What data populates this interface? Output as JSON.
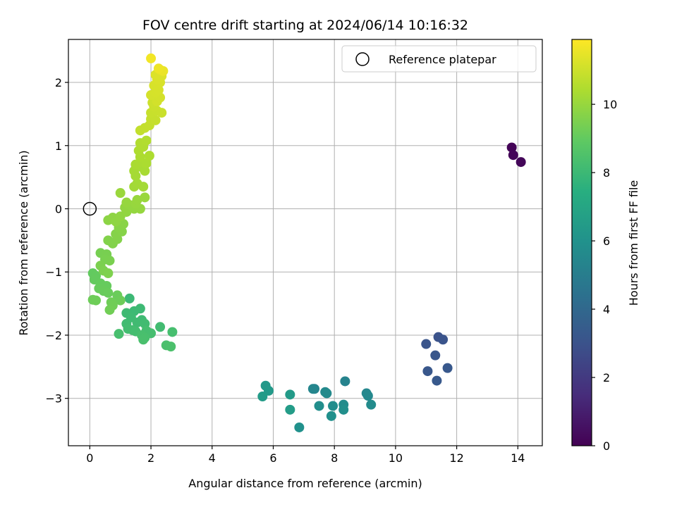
{
  "chart_data": {
    "type": "scatter",
    "title": "FOV centre drift starting at 2024/06/14 10:16:32",
    "xlabel": "Angular distance from reference (arcmin)",
    "ylabel": "Rotation from reference (arcmin)",
    "xlim": [
      -0.7,
      14.8
    ],
    "ylim": [
      -3.75,
      2.68
    ],
    "xticks": [
      0,
      2,
      4,
      6,
      8,
      10,
      12,
      14
    ],
    "xtick_labels": [
      "0",
      "2",
      "4",
      "6",
      "8",
      "10",
      "12",
      "14"
    ],
    "yticks": [
      -3,
      -2,
      -1,
      0,
      1,
      2
    ],
    "ytick_labels": [
      "−3",
      "−2",
      "−1",
      "0",
      "1",
      "2"
    ],
    "grid": true,
    "legend": {
      "location": "top-right",
      "entries": [
        "Reference platepar"
      ]
    },
    "reference_point": {
      "x": 0,
      "y": 0,
      "label": "Reference platepar"
    },
    "colorbar": {
      "label": "Hours from first FF file",
      "colormap": "viridis",
      "range": [
        0,
        11.9
      ],
      "ticks": [
        0,
        2,
        4,
        6,
        8,
        10
      ],
      "tick_labels": [
        "0",
        "2",
        "4",
        "6",
        "8",
        "10"
      ]
    },
    "series": [
      {
        "points": [
          [
            13.8,
            0.97,
            0.1
          ],
          [
            13.85,
            0.85,
            0.15
          ],
          [
            14.1,
            0.74,
            0.2
          ],
          [
            11.4,
            -2.03,
            3.0
          ],
          [
            11.55,
            -2.07,
            3.05
          ],
          [
            11.0,
            -2.14,
            3.1
          ],
          [
            11.3,
            -2.32,
            3.15
          ],
          [
            11.05,
            -2.57,
            3.2
          ],
          [
            11.7,
            -2.52,
            3.25
          ],
          [
            11.35,
            -2.72,
            3.3
          ],
          [
            8.35,
            -2.73,
            5.3
          ],
          [
            7.35,
            -2.85,
            5.35
          ],
          [
            7.3,
            -2.85,
            5.4
          ],
          [
            9.05,
            -2.92,
            5.45
          ],
          [
            9.1,
            -2.96,
            5.5
          ],
          [
            7.7,
            -2.9,
            5.55
          ],
          [
            7.75,
            -2.92,
            5.6
          ],
          [
            9.2,
            -3.1,
            5.65
          ],
          [
            8.3,
            -3.1,
            5.7
          ],
          [
            7.95,
            -3.12,
            5.75
          ],
          [
            7.5,
            -3.12,
            5.8
          ],
          [
            8.3,
            -3.18,
            5.85
          ],
          [
            7.9,
            -3.28,
            5.9
          ],
          [
            6.85,
            -3.46,
            5.95
          ],
          [
            5.75,
            -2.8,
            6.3
          ],
          [
            5.85,
            -2.88,
            6.35
          ],
          [
            6.55,
            -2.94,
            6.4
          ],
          [
            5.65,
            -2.97,
            6.45
          ],
          [
            6.55,
            -3.18,
            6.5
          ],
          [
            1.3,
            -1.42,
            8.0
          ],
          [
            1.45,
            -1.62,
            8.02
          ],
          [
            1.65,
            -1.58,
            8.04
          ],
          [
            1.2,
            -1.65,
            8.06
          ],
          [
            1.35,
            -1.72,
            8.08
          ],
          [
            1.7,
            -1.76,
            8.1
          ],
          [
            1.55,
            -1.8,
            8.12
          ],
          [
            1.2,
            -1.82,
            8.14
          ],
          [
            1.8,
            -1.82,
            8.16
          ],
          [
            2.3,
            -1.87,
            8.18
          ],
          [
            1.25,
            -1.9,
            8.2
          ],
          [
            1.4,
            -1.92,
            8.22
          ],
          [
            1.5,
            -1.94,
            8.24
          ],
          [
            1.85,
            -1.93,
            8.26
          ],
          [
            2.0,
            -1.97,
            8.28
          ],
          [
            2.7,
            -1.95,
            8.3
          ],
          [
            0.95,
            -1.98,
            8.32
          ],
          [
            1.7,
            -2.0,
            8.34
          ],
          [
            1.8,
            -2.04,
            8.36
          ],
          [
            1.75,
            -2.07,
            8.38
          ],
          [
            2.5,
            -2.16,
            8.4
          ],
          [
            2.65,
            -2.18,
            8.42
          ],
          [
            0.1,
            -1.02,
            9.0
          ],
          [
            0.2,
            -1.06,
            9.02
          ],
          [
            0.15,
            -1.12,
            9.04
          ],
          [
            0.35,
            -1.18,
            9.06
          ],
          [
            0.55,
            -1.22,
            9.08
          ],
          [
            0.3,
            -1.26,
            9.1
          ],
          [
            0.45,
            -1.3,
            9.12
          ],
          [
            0.6,
            -1.33,
            9.14
          ],
          [
            0.9,
            -1.37,
            9.16
          ],
          [
            1.0,
            -1.45,
            9.18
          ],
          [
            0.1,
            -1.44,
            9.2
          ],
          [
            0.2,
            -1.45,
            9.22
          ],
          [
            0.7,
            -1.48,
            9.24
          ],
          [
            0.75,
            -1.53,
            9.26
          ],
          [
            0.65,
            -1.6,
            9.28
          ],
          [
            0.35,
            -0.7,
            9.4
          ],
          [
            0.55,
            -0.72,
            9.42
          ],
          [
            0.5,
            -0.8,
            9.44
          ],
          [
            0.65,
            -0.82,
            9.46
          ],
          [
            0.35,
            -0.9,
            9.48
          ],
          [
            0.45,
            -0.98,
            9.5
          ],
          [
            0.6,
            -1.02,
            9.52
          ],
          [
            0.6,
            -0.5,
            9.6
          ],
          [
            0.75,
            -0.55,
            9.62
          ],
          [
            0.9,
            -0.48,
            9.64
          ],
          [
            0.85,
            -0.4,
            9.66
          ],
          [
            1.05,
            -0.36,
            9.68
          ],
          [
            0.95,
            -0.3,
            9.7
          ],
          [
            0.9,
            -0.22,
            9.72
          ],
          [
            1.1,
            -0.24,
            9.74
          ],
          [
            0.6,
            -0.18,
            9.8
          ],
          [
            0.75,
            -0.14,
            9.82
          ],
          [
            0.85,
            -0.2,
            9.84
          ],
          [
            1.0,
            -0.12,
            9.86
          ],
          [
            1.2,
            -0.05,
            9.88
          ],
          [
            1.15,
            0.02,
            9.9
          ],
          [
            1.3,
            0.06,
            9.92
          ],
          [
            1.45,
            0.0,
            9.94
          ],
          [
            1.65,
            0.0,
            9.96
          ],
          [
            1.2,
            0.1,
            9.98
          ],
          [
            1.5,
            0.08,
            10.0
          ],
          [
            1.55,
            0.14,
            10.02
          ],
          [
            1.8,
            0.18,
            10.04
          ],
          [
            1.0,
            0.25,
            10.06
          ],
          [
            1.45,
            0.35,
            10.2
          ],
          [
            1.55,
            0.4,
            10.22
          ],
          [
            1.75,
            0.35,
            10.24
          ],
          [
            1.5,
            0.52,
            10.26
          ],
          [
            1.45,
            0.6,
            10.28
          ],
          [
            1.7,
            0.66,
            10.3
          ],
          [
            1.8,
            0.6,
            10.32
          ],
          [
            1.5,
            0.7,
            10.34
          ],
          [
            1.65,
            0.74,
            10.36
          ],
          [
            1.85,
            0.72,
            10.38
          ],
          [
            1.65,
            0.82,
            10.4
          ],
          [
            1.95,
            0.84,
            10.42
          ],
          [
            1.6,
            0.92,
            10.44
          ],
          [
            1.75,
            0.98,
            10.46
          ],
          [
            1.65,
            1.04,
            10.48
          ],
          [
            1.85,
            1.08,
            10.5
          ],
          [
            1.65,
            1.24,
            10.8
          ],
          [
            1.8,
            1.28,
            10.82
          ],
          [
            1.95,
            1.32,
            10.84
          ],
          [
            2.0,
            1.42,
            10.86
          ],
          [
            2.15,
            1.4,
            10.88
          ],
          [
            2.0,
            1.52,
            10.9
          ],
          [
            2.2,
            1.55,
            10.92
          ],
          [
            2.35,
            1.52,
            10.94
          ],
          [
            2.1,
            1.62,
            10.96
          ],
          [
            2.05,
            1.68,
            10.98
          ],
          [
            2.2,
            1.7,
            11.1
          ],
          [
            2.3,
            1.76,
            11.12
          ],
          [
            2.0,
            1.8,
            11.14
          ],
          [
            2.15,
            1.84,
            11.16
          ],
          [
            2.25,
            1.88,
            11.18
          ],
          [
            2.1,
            1.95,
            11.2
          ],
          [
            2.3,
            2.0,
            11.22
          ],
          [
            2.2,
            2.05,
            11.24
          ],
          [
            2.35,
            2.1,
            11.26
          ],
          [
            2.15,
            2.12,
            11.28
          ],
          [
            2.3,
            2.2,
            11.5
          ],
          [
            2.4,
            2.18,
            11.55
          ],
          [
            2.25,
            2.22,
            11.6
          ],
          [
            2.0,
            2.38,
            11.7
          ]
        ]
      }
    ]
  }
}
